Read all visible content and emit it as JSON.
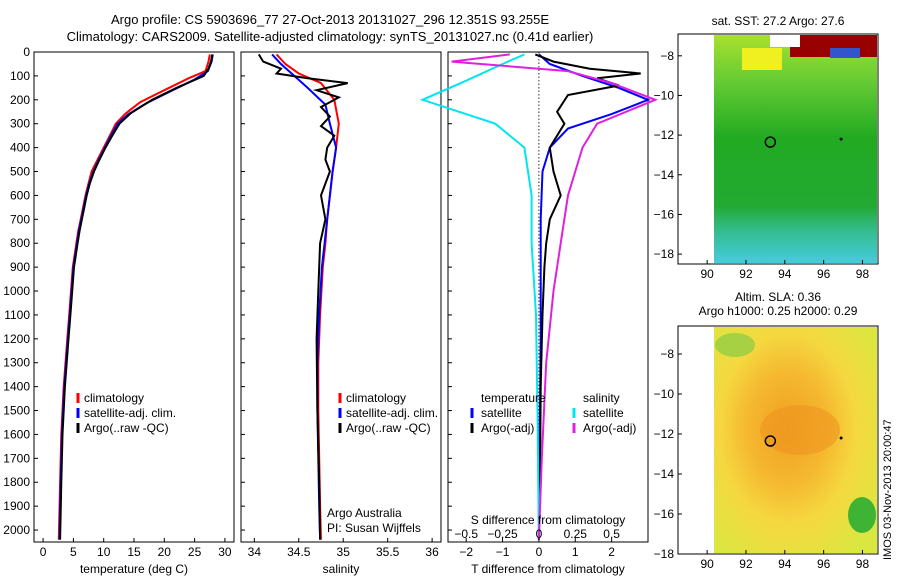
{
  "title_line1": "Argo profile: CS 5903696_77 27-Oct-2013 20131027_296 12.351S 93.255E",
  "title_line2": "Climatology: CARS2009. Satellite-adjusted climatology: synTS_20131027.nc (0.41d earlier)",
  "colors": {
    "climatology": "#ff0000",
    "satellite": "#0000ff",
    "argo": "#000000",
    "satellite_salinity": "#00e5ee",
    "argo_salinity": "#e020e0"
  },
  "chart_data": [
    {
      "id": "temperature",
      "type": "line",
      "xlabel": "temperature (deg C)",
      "ylabel": "",
      "xlim": [
        -1.5,
        31.5
      ],
      "ylim": [
        2050,
        0
      ],
      "xticks": [
        0,
        5,
        10,
        15,
        20,
        25,
        30
      ],
      "yticks": [
        0,
        100,
        200,
        300,
        400,
        500,
        600,
        700,
        800,
        900,
        1000,
        1100,
        1200,
        1300,
        1400,
        1500,
        1600,
        1700,
        1800,
        1900,
        2000
      ],
      "legend": [
        "climatology",
        "satellite-adj. clim.",
        "Argo(..raw -QC)"
      ],
      "series": [
        {
          "name": "climatology",
          "color": "#ff0000",
          "x": [
            27.5,
            27.3,
            26.8,
            24,
            20,
            16,
            13.5,
            12,
            11,
            10,
            9,
            8,
            7.5,
            7,
            6.6,
            6.2,
            5.8,
            5.5,
            5.2,
            4.9,
            4.6,
            4.3,
            4.0,
            3.7,
            3.4,
            3.2,
            3.0,
            2.8,
            2.6
          ],
          "y": [
            10,
            40,
            80,
            110,
            160,
            210,
            260,
            300,
            350,
            400,
            450,
            500,
            550,
            600,
            650,
            700,
            750,
            800,
            850,
            900,
            1000,
            1100,
            1200,
            1300,
            1400,
            1500,
            1600,
            1800,
            2040
          ]
        },
        {
          "name": "satellite-adj. clim.",
          "color": "#0000ff",
          "x": [
            28,
            27.8,
            27.2,
            25,
            21,
            17,
            14,
            12.3,
            11.2,
            10.2,
            9.2,
            8.3,
            7.6,
            7.1,
            6.7,
            6.3,
            5.9,
            5.6,
            5.3,
            5.0,
            4.7,
            4.4,
            4.1,
            3.8,
            3.5,
            3.3,
            3.1,
            2.9,
            2.7
          ],
          "y": [
            10,
            40,
            80,
            115,
            165,
            215,
            262,
            300,
            350,
            400,
            450,
            500,
            550,
            600,
            650,
            700,
            750,
            800,
            850,
            900,
            1000,
            1100,
            1200,
            1300,
            1400,
            1500,
            1600,
            1800,
            2040
          ]
        },
        {
          "name": "Argo(..raw -QC)",
          "color": "#000000",
          "x": [
            27.9,
            27.7,
            27.3,
            26.5,
            22,
            18,
            14.5,
            12.6,
            11.4,
            10.3,
            9.3,
            8.4,
            7.7,
            7.2,
            6.8,
            6.4,
            6.0,
            5.7,
            5.4,
            5.1,
            4.8,
            4.5,
            4.2,
            3.9,
            3.6,
            3.4,
            3.2,
            3.0,
            2.8
          ],
          "y": [
            10,
            40,
            70,
            100,
            150,
            200,
            255,
            300,
            350,
            400,
            450,
            500,
            550,
            600,
            650,
            700,
            750,
            800,
            850,
            900,
            1000,
            1100,
            1200,
            1300,
            1400,
            1500,
            1600,
            1800,
            2040
          ]
        }
      ]
    },
    {
      "id": "salinity",
      "type": "line",
      "xlabel": "salinity",
      "ylabel": "",
      "xlim": [
        33.85,
        36.1
      ],
      "ylim": [
        2050,
        0
      ],
      "xticks": [
        34,
        34.5,
        35,
        35.5,
        36
      ],
      "legend": [
        "climatology",
        "satellite-adj. clim.",
        "Argo(..raw -QC)"
      ],
      "annotation": [
        "Argo Australia",
        "PI: Susan Wijffels"
      ],
      "series": [
        {
          "name": "climatology",
          "color": "#ff0000",
          "x": [
            34.25,
            34.35,
            34.5,
            34.75,
            34.9,
            34.95,
            34.92,
            34.88,
            34.85,
            34.82,
            34.8,
            34.77,
            34.74,
            34.72,
            34.72,
            34.73,
            34.74,
            34.75
          ],
          "y": [
            10,
            50,
            90,
            130,
            200,
            300,
            400,
            500,
            600,
            700,
            800,
            900,
            1100,
            1300,
            1500,
            1700,
            1900,
            2040
          ]
        },
        {
          "name": "satellite-adj. clim.",
          "color": "#0000ff",
          "x": [
            34.2,
            34.3,
            34.45,
            34.6,
            34.8,
            34.85,
            34.92,
            34.88,
            34.85,
            34.82,
            34.79,
            34.76,
            34.73,
            34.71,
            34.71,
            34.72,
            34.73,
            34.74
          ],
          "y": [
            10,
            50,
            100,
            150,
            220,
            300,
            400,
            500,
            600,
            700,
            800,
            900,
            1100,
            1300,
            1500,
            1700,
            1900,
            2040
          ]
        },
        {
          "name": "Argo(..raw -QC)",
          "color": "#000000",
          "x": [
            34.05,
            34.1,
            34.3,
            34.25,
            34.6,
            35.05,
            34.7,
            34.95,
            34.75,
            34.85,
            34.75,
            34.9,
            34.82,
            34.8,
            34.85,
            34.75,
            34.8,
            34.74,
            34.72,
            34.7,
            34.71,
            34.73,
            34.74
          ],
          "y": [
            10,
            40,
            70,
            90,
            110,
            130,
            160,
            190,
            230,
            270,
            310,
            350,
            400,
            450,
            500,
            600,
            700,
            800,
            1000,
            1200,
            1500,
            1800,
            2040
          ]
        }
      ]
    },
    {
      "id": "difference",
      "type": "line",
      "xlabel": "T difference from climatology",
      "x2label": "S difference from climatology",
      "xlim": [
        -2.5,
        3.0
      ],
      "ylim": [
        2050,
        0
      ],
      "xticks": [
        -2,
        -1,
        0,
        1,
        2
      ],
      "x2ticks": [
        -0.5,
        -0.25,
        0,
        0.25,
        0.5
      ],
      "legend": {
        "temperature_header": "temperature",
        "salinity_header": "salinity",
        "entries": [
          "satellite",
          "Argo(-adj)",
          "satellite",
          "Argo(-adj)"
        ]
      },
      "series": [
        {
          "name": "satellite",
          "quantity": "temperature",
          "color": "#0000ff",
          "x": [
            0.0,
            0.3,
            1.2,
            2.2,
            3.0,
            2.0,
            0.8,
            0.3,
            0.1,
            0.05,
            0.05,
            0.05,
            0.03,
            0.0,
            0.0
          ],
          "y": [
            10,
            50,
            100,
            150,
            200,
            260,
            320,
            400,
            500,
            700,
            900,
            1200,
            1500,
            1800,
            2040
          ]
        },
        {
          "name": "Argo(-adj)",
          "quantity": "temperature",
          "color": "#000000",
          "x": [
            -0.1,
            0.4,
            1.4,
            2.8,
            1.6,
            2.2,
            0.8,
            0.5,
            0.7,
            0.3,
            0.4,
            0.6,
            0.3,
            0.2,
            0.15,
            0.1,
            0.05,
            0.03,
            0.0
          ],
          "y": [
            10,
            40,
            70,
            90,
            110,
            140,
            180,
            250,
            300,
            400,
            500,
            600,
            700,
            800,
            900,
            1100,
            1400,
            1800,
            2040
          ]
        },
        {
          "name": "satellite",
          "quantity": "salinity",
          "color": "#00e5ee",
          "x": [
            -0.1,
            -0.25,
            -0.5,
            -0.8,
            -0.3,
            -0.1,
            -0.05,
            -0.05,
            -0.02,
            -0.01,
            0.0
          ],
          "y": [
            10,
            50,
            120,
            200,
            300,
            400,
            600,
            800,
            1100,
            1500,
            2040
          ]
        },
        {
          "name": "Argo(-adj)",
          "quantity": "salinity",
          "color": "#e020e0",
          "x": [
            -0.2,
            -0.6,
            0.2,
            0.5,
            0.8,
            0.4,
            0.3,
            0.2,
            0.15,
            0.1,
            0.05,
            0.02,
            0.0
          ],
          "y": [
            10,
            40,
            80,
            130,
            200,
            300,
            400,
            600,
            800,
            1000,
            1300,
            1700,
            2040
          ]
        }
      ]
    },
    {
      "id": "sst-map",
      "type": "heatmap",
      "title": "sat. SST: 27.2 Argo: 27.6",
      "xlim": [
        88.5,
        98.8
      ],
      "ylim": [
        -18.5,
        -6.9
      ],
      "xticks": [
        90,
        92,
        94,
        96,
        98
      ],
      "yticks": [
        -8,
        -10,
        -12,
        -14,
        -16,
        -18
      ],
      "marker": {
        "lon": 93.255,
        "lat": -12.351
      }
    },
    {
      "id": "sla-map",
      "type": "heatmap",
      "title": [
        "Altim. SLA: 0.36",
        "Argo h1000: 0.25 h2000: 0.29"
      ],
      "xlim": [
        88.5,
        98.8
      ],
      "ylim": [
        -18.0,
        -6.6
      ],
      "xticks": [
        90,
        92,
        94,
        96,
        98
      ],
      "yticks": [
        -8,
        -10,
        -12,
        -14,
        -16,
        -18
      ],
      "marker": {
        "lon": 93.255,
        "lat": -12.351
      }
    }
  ],
  "stamp": "IMOS 03-Nov-2013 20:00:47"
}
